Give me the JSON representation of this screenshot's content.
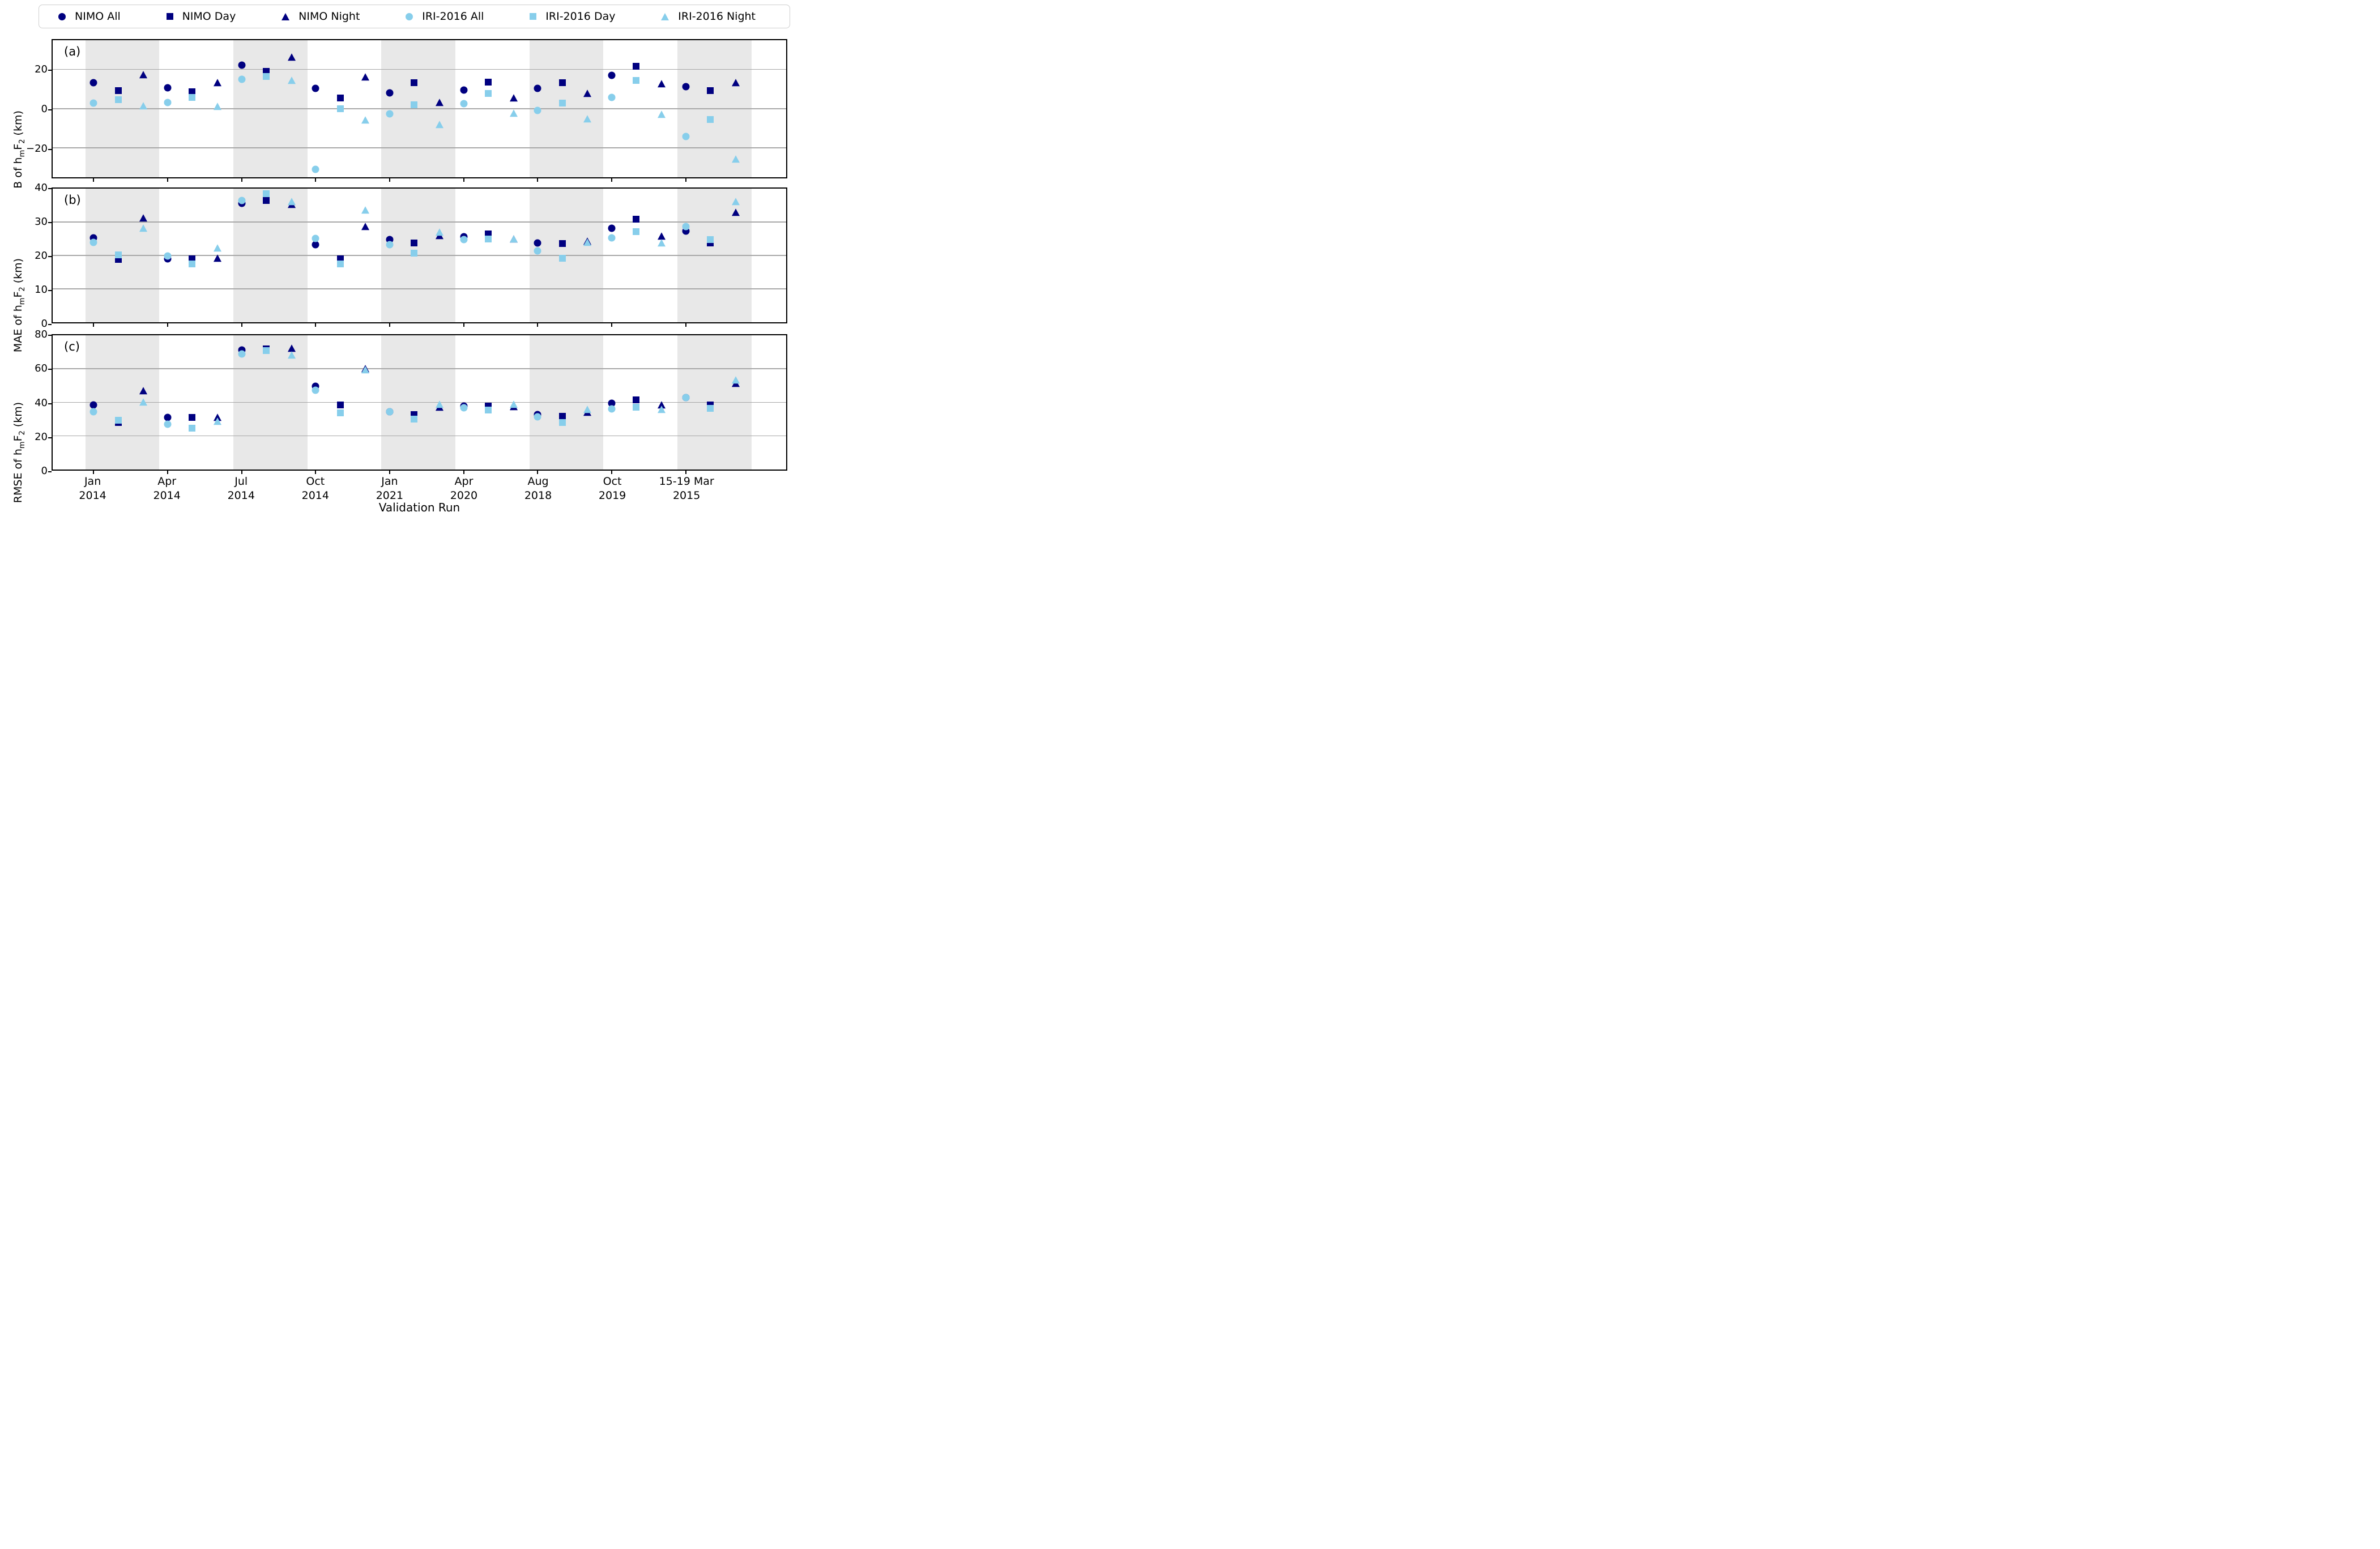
{
  "figure_title": "",
  "colors": {
    "nimo": "#000080",
    "iri": "#87CEEB",
    "band": "#e8e8e8",
    "grid": "#a8a8a8"
  },
  "legend": {
    "items": [
      {
        "label": "NIMO All",
        "color_key": "nimo",
        "shape": "circle"
      },
      {
        "label": "NIMO Day",
        "color_key": "nimo",
        "shape": "square"
      },
      {
        "label": "NIMO Night",
        "color_key": "nimo",
        "shape": "triangle"
      },
      {
        "label": "IRI-2016 All",
        "color_key": "iri",
        "shape": "circle"
      },
      {
        "label": "IRI-2016 Day",
        "color_key": "iri",
        "shape": "square"
      },
      {
        "label": "IRI-2016 Night",
        "color_key": "iri",
        "shape": "triangle"
      }
    ]
  },
  "xlabel": "Validation Run",
  "categories": [
    {
      "line1": "Jan",
      "line2": "2014"
    },
    {
      "line1": "Apr",
      "line2": "2014"
    },
    {
      "line1": "Jul",
      "line2": "2014"
    },
    {
      "line1": "Oct",
      "line2": "2014"
    },
    {
      "line1": "Jan",
      "line2": "2021"
    },
    {
      "line1": "Apr",
      "line2": "2020"
    },
    {
      "line1": "Aug",
      "line2": "2018"
    },
    {
      "line1": "Oct",
      "line2": "2019"
    },
    {
      "line1": "15-19 Mar",
      "line2": "2015"
    }
  ],
  "chart_data": [
    {
      "type": "scatter",
      "panel_label": "(a)",
      "ylabel_parts": [
        {
          "t": "B of h"
        },
        {
          "t": "m",
          "sub": true
        },
        {
          "t": "F"
        },
        {
          "t": "2",
          "sub": true
        },
        {
          "t": " (km)"
        }
      ],
      "ylim": [
        -35,
        35
      ],
      "yticks": [
        -20,
        0,
        20
      ],
      "ytick_labels": [
        "−20",
        "0",
        "20"
      ],
      "grid": true,
      "series": [
        {
          "name": "NIMO All",
          "color_key": "nimo",
          "shape": "circle",
          "slot": "all",
          "values": [
            13.3,
            10.6,
            22.2,
            10.5,
            8.2,
            9.5,
            10.5,
            17.1,
            11.2
          ]
        },
        {
          "name": "NIMO Day",
          "color_key": "nimo",
          "shape": "square",
          "slot": "day",
          "values": [
            9.2,
            8.6,
            19.2,
            5.4,
            13.4,
            13.6,
            13.3,
            21.6,
            9.3
          ]
        },
        {
          "name": "NIMO Night",
          "color_key": "nimo",
          "shape": "triangle",
          "slot": "night",
          "values": [
            17.2,
            13.1,
            26.1,
            15.9,
            3.0,
            5.2,
            7.6,
            12.3,
            13.0
          ]
        },
        {
          "name": "IRI-2016 All",
          "color_key": "iri",
          "shape": "circle",
          "slot": "all",
          "values": [
            3.0,
            3.2,
            14.9,
            -30.9,
            -2.6,
            2.6,
            -1.0,
            5.8,
            -14.3
          ]
        },
        {
          "name": "IRI-2016 Day",
          "color_key": "iri",
          "shape": "square",
          "slot": "day",
          "values": [
            4.6,
            5.8,
            16.5,
            0.0,
            1.9,
            7.9,
            3.0,
            14.4,
            -5.6
          ]
        },
        {
          "name": "IRI-2016 Night",
          "color_key": "iri",
          "shape": "triangle",
          "slot": "night",
          "values": [
            1.1,
            0.9,
            14.3,
            -6.2,
            -8.5,
            -2.5,
            -5.6,
            -3.1,
            -26.0
          ]
        }
      ]
    },
    {
      "type": "scatter",
      "panel_label": "(b)",
      "ylabel_parts": [
        {
          "t": "MAE of h"
        },
        {
          "t": "m",
          "sub": true
        },
        {
          "t": "F"
        },
        {
          "t": "2",
          "sub": true
        },
        {
          "t": " (km)"
        }
      ],
      "ylim": [
        0,
        40
      ],
      "yticks": [
        0,
        10,
        20,
        30,
        40
      ],
      "ytick_labels": [
        "0",
        "10",
        "20",
        "30",
        "40"
      ],
      "grid": true,
      "series": [
        {
          "name": "NIMO All",
          "color_key": "nimo",
          "shape": "circle",
          "slot": "all",
          "values": [
            25.3,
            19.0,
            35.6,
            23.2,
            24.8,
            25.6,
            23.7,
            28.2,
            27.3
          ]
        },
        {
          "name": "NIMO Day",
          "color_key": "nimo",
          "shape": "square",
          "slot": "day",
          "values": [
            18.8,
            18.9,
            36.5,
            19.0,
            23.8,
            26.4,
            23.5,
            30.9,
            23.7
          ]
        },
        {
          "name": "NIMO Night",
          "color_key": "nimo",
          "shape": "triangle",
          "slot": "night",
          "values": [
            31.1,
            19.0,
            35.1,
            28.4,
            25.7,
            24.7,
            24.0,
            25.6,
            32.7
          ]
        },
        {
          "name": "IRI-2016 All",
          "color_key": "iri",
          "shape": "circle",
          "slot": "all",
          "values": [
            23.9,
            19.9,
            36.5,
            25.1,
            23.3,
            24.7,
            21.4,
            25.2,
            28.7
          ]
        },
        {
          "name": "IRI-2016 Day",
          "color_key": "iri",
          "shape": "square",
          "slot": "day",
          "values": [
            20.2,
            17.4,
            38.4,
            17.5,
            20.6,
            24.9,
            19.1,
            27.1,
            24.7
          ]
        },
        {
          "name": "IRI-2016 Night",
          "color_key": "iri",
          "shape": "triangle",
          "slot": "night",
          "values": [
            27.9,
            22.1,
            36.0,
            33.4,
            26.8,
            24.8,
            23.8,
            23.5,
            35.9
          ]
        }
      ]
    },
    {
      "type": "scatter",
      "panel_label": "(c)",
      "ylabel_parts": [
        {
          "t": "RMSE of h"
        },
        {
          "t": "m",
          "sub": true
        },
        {
          "t": "F"
        },
        {
          "t": "2",
          "sub": true
        },
        {
          "t": " (km)"
        }
      ],
      "ylim": [
        0,
        80
      ],
      "yticks": [
        0,
        20,
        40,
        60,
        80
      ],
      "ytick_labels": [
        "0",
        "20",
        "40",
        "60",
        "80"
      ],
      "grid": true,
      "series": [
        {
          "name": "NIMO All",
          "color_key": "nimo",
          "shape": "circle",
          "slot": "all",
          "values": [
            38.6,
            31.0,
            71.3,
            49.7,
            34.3,
            37.8,
            32.8,
            39.6,
            43.0
          ]
        },
        {
          "name": "NIMO Day",
          "color_key": "nimo",
          "shape": "square",
          "slot": "day",
          "values": [
            28.0,
            31.0,
            72.0,
            38.5,
            32.7,
            37.8,
            31.8,
            41.4,
            38.5
          ]
        },
        {
          "name": "NIMO Night",
          "color_key": "nimo",
          "shape": "triangle",
          "slot": "night",
          "values": [
            46.6,
            30.7,
            71.8,
            59.6,
            36.8,
            37.0,
            33.8,
            38.0,
            51.0
          ]
        },
        {
          "name": "IRI-2016 All",
          "color_key": "iri",
          "shape": "circle",
          "slot": "all",
          "values": [
            34.4,
            27.0,
            68.7,
            47.3,
            34.3,
            36.9,
            31.3,
            36.2,
            43.0
          ]
        },
        {
          "name": "IRI-2016 Day",
          "color_key": "iri",
          "shape": "square",
          "slot": "day",
          "values": [
            29.3,
            24.5,
            71.0,
            33.9,
            30.2,
            35.3,
            28.0,
            37.2,
            36.6
          ]
        },
        {
          "name": "IRI-2016 Night",
          "color_key": "iri",
          "shape": "triangle",
          "slot": "night",
          "values": [
            39.7,
            28.2,
            68.0,
            59.2,
            38.5,
            38.4,
            35.3,
            35.5,
            52.9
          ]
        }
      ]
    }
  ]
}
